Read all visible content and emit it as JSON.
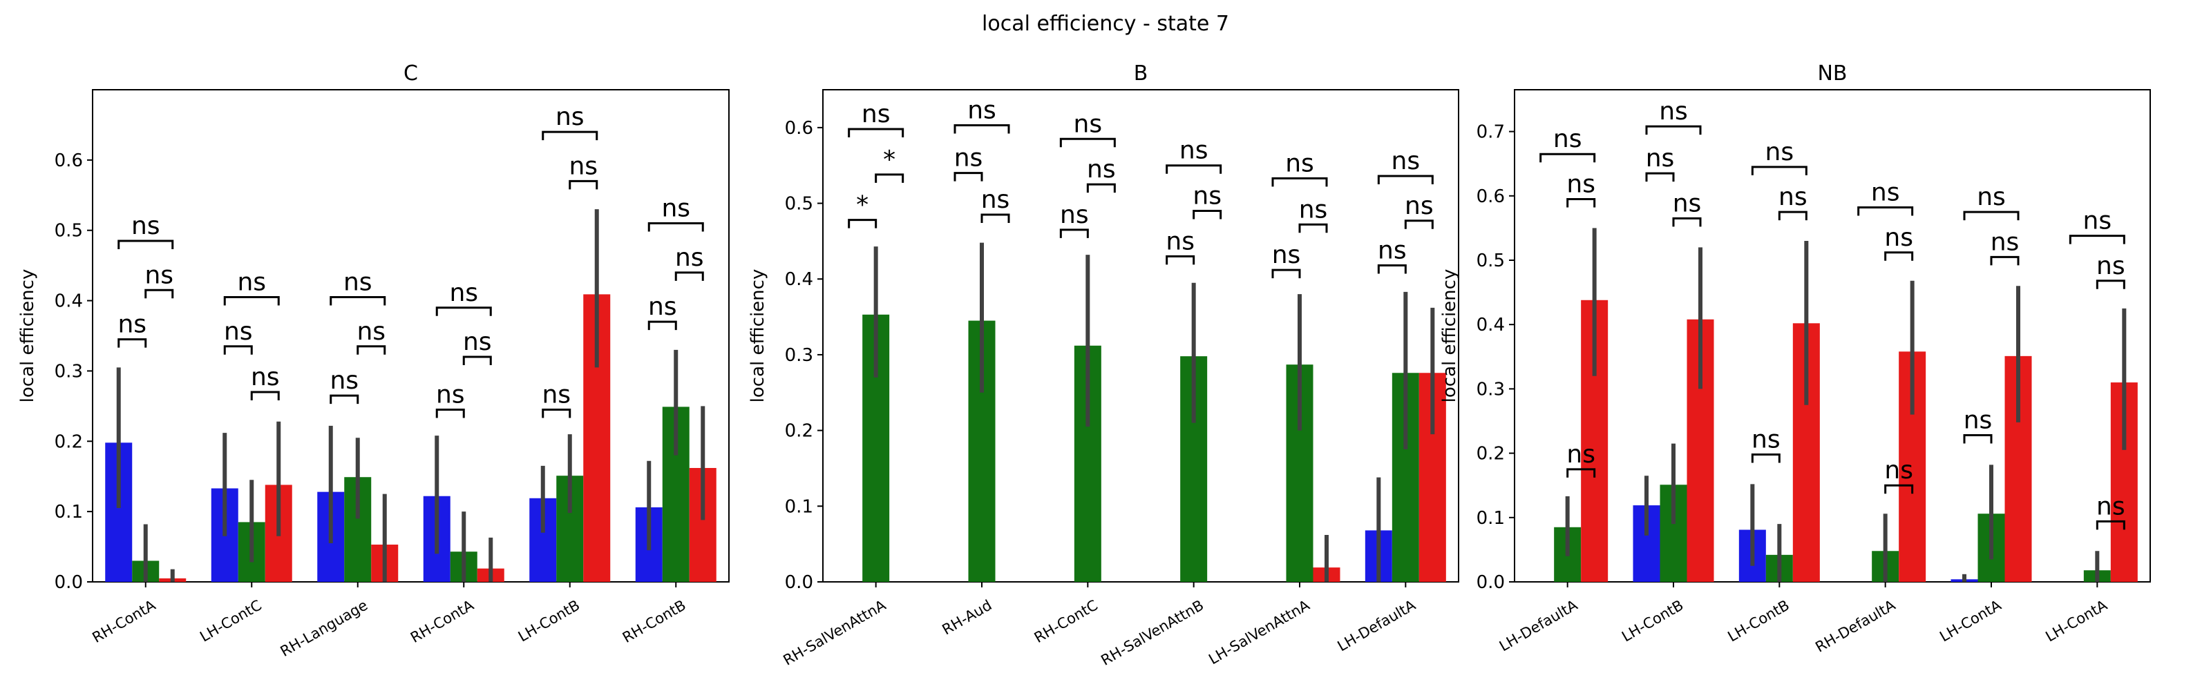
{
  "figure_title": "local efficiency - state 7",
  "colors": {
    "blue": "#1a1ae6",
    "green": "#127312",
    "red": "#e61a1a",
    "err": "#404040"
  },
  "chart_data": [
    {
      "type": "bar",
      "title": "C",
      "ylabel": "local efficiency",
      "ylim": [
        0,
        0.7
      ],
      "yticks": [
        "0.0",
        "0.1",
        "0.2",
        "0.3",
        "0.4",
        "0.5",
        "0.6"
      ],
      "categories": [
        "RH-ContA",
        "LH-ContC",
        "RH-Language",
        "RH-ContA",
        "LH-ContB",
        "RH-ContB"
      ],
      "series": [
        {
          "color": "blue",
          "values": [
            0.198,
            0.133,
            0.128,
            0.122,
            0.119,
            0.106
          ],
          "err_low": [
            0.105,
            0.065,
            0.055,
            0.04,
            0.07,
            0.045
          ],
          "err_high": [
            0.305,
            0.212,
            0.222,
            0.208,
            0.165,
            0.172
          ]
        },
        {
          "color": "green",
          "values": [
            0.03,
            0.085,
            0.149,
            0.043,
            0.151,
            0.249
          ],
          "err_low": [
            0.0,
            0.028,
            0.09,
            0.0,
            0.098,
            0.18
          ],
          "err_high": [
            0.082,
            0.145,
            0.205,
            0.1,
            0.21,
            0.33
          ]
        },
        {
          "color": "red",
          "values": [
            0.005,
            0.138,
            0.053,
            0.019,
            0.409,
            0.162
          ],
          "err_low": [
            0.0,
            0.065,
            0.0,
            0.0,
            0.305,
            0.088
          ],
          "err_high": [
            0.018,
            0.228,
            0.125,
            0.063,
            0.53,
            0.25
          ]
        }
      ],
      "annotations": [
        {
          "cat": 0,
          "pair": "bg",
          "label": "ns",
          "y": 0.345
        },
        {
          "cat": 0,
          "pair": "gr",
          "label": "ns",
          "y": 0.415
        },
        {
          "cat": 0,
          "pair": "br",
          "label": "ns",
          "y": 0.485
        },
        {
          "cat": 1,
          "pair": "bg",
          "label": "ns",
          "y": 0.335
        },
        {
          "cat": 1,
          "pair": "gr",
          "label": "ns",
          "y": 0.27
        },
        {
          "cat": 1,
          "pair": "br",
          "label": "ns",
          "y": 0.405
        },
        {
          "cat": 2,
          "pair": "bg",
          "label": "ns",
          "y": 0.265
        },
        {
          "cat": 2,
          "pair": "gr",
          "label": "ns",
          "y": 0.335
        },
        {
          "cat": 2,
          "pair": "br",
          "label": "ns",
          "y": 0.405
        },
        {
          "cat": 3,
          "pair": "bg",
          "label": "ns",
          "y": 0.245
        },
        {
          "cat": 3,
          "pair": "gr",
          "label": "ns",
          "y": 0.32
        },
        {
          "cat": 3,
          "pair": "br",
          "label": "ns",
          "y": 0.39
        },
        {
          "cat": 4,
          "pair": "bg",
          "label": "ns",
          "y": 0.245
        },
        {
          "cat": 4,
          "pair": "gr",
          "label": "ns",
          "y": 0.57
        },
        {
          "cat": 4,
          "pair": "br",
          "label": "ns",
          "y": 0.64
        },
        {
          "cat": 5,
          "pair": "bg",
          "label": "ns",
          "y": 0.37
        },
        {
          "cat": 5,
          "pair": "gr",
          "label": "ns",
          "y": 0.44
        },
        {
          "cat": 5,
          "pair": "br",
          "label": "ns",
          "y": 0.51
        }
      ]
    },
    {
      "type": "bar",
      "title": "B",
      "ylabel": "local efficiency",
      "ylim": [
        0,
        0.65
      ],
      "yticks": [
        "0.0",
        "0.1",
        "0.2",
        "0.3",
        "0.4",
        "0.5",
        "0.6"
      ],
      "categories": [
        "RH-SalVenAttnA",
        "RH-Aud",
        "RH-ContC",
        "RH-SalVenAttnB",
        "LH-SalVenAttnA",
        "LH-DefaultA"
      ],
      "series": [
        {
          "color": "blue",
          "values": [
            0,
            0,
            0,
            0,
            0,
            0.068
          ],
          "err_low": [
            0,
            0,
            0,
            0,
            0,
            0.0
          ],
          "err_high": [
            0,
            0,
            0,
            0,
            0,
            0.138
          ]
        },
        {
          "color": "green",
          "values": [
            0.353,
            0.345,
            0.312,
            0.298,
            0.287,
            0.276
          ],
          "err_low": [
            0.27,
            0.25,
            0.205,
            0.21,
            0.2,
            0.175
          ],
          "err_high": [
            0.443,
            0.448,
            0.432,
            0.395,
            0.38,
            0.383
          ]
        },
        {
          "color": "red",
          "values": [
            0,
            0,
            0,
            0,
            0.019,
            0.276
          ],
          "err_low": [
            0,
            0,
            0,
            0,
            0.0,
            0.195
          ],
          "err_high": [
            0,
            0,
            0,
            0,
            0.062,
            0.362
          ]
        }
      ],
      "annotations": [
        {
          "cat": 0,
          "pair": "bg",
          "label": "*",
          "y": 0.478
        },
        {
          "cat": 0,
          "pair": "gr",
          "label": "*",
          "y": 0.538
        },
        {
          "cat": 0,
          "pair": "br",
          "label": "ns",
          "y": 0.598
        },
        {
          "cat": 1,
          "pair": "bg",
          "label": "ns",
          "y": 0.54
        },
        {
          "cat": 1,
          "pair": "gr",
          "label": "ns",
          "y": 0.485
        },
        {
          "cat": 1,
          "pair": "br",
          "label": "ns",
          "y": 0.603
        },
        {
          "cat": 2,
          "pair": "bg",
          "label": "ns",
          "y": 0.465
        },
        {
          "cat": 2,
          "pair": "gr",
          "label": "ns",
          "y": 0.525
        },
        {
          "cat": 2,
          "pair": "br",
          "label": "ns",
          "y": 0.585
        },
        {
          "cat": 3,
          "pair": "bg",
          "label": "ns",
          "y": 0.43
        },
        {
          "cat": 3,
          "pair": "gr",
          "label": "ns",
          "y": 0.49
        },
        {
          "cat": 3,
          "pair": "br",
          "label": "ns",
          "y": 0.55
        },
        {
          "cat": 4,
          "pair": "bg",
          "label": "ns",
          "y": 0.412
        },
        {
          "cat": 4,
          "pair": "gr",
          "label": "ns",
          "y": 0.472
        },
        {
          "cat": 4,
          "pair": "br",
          "label": "ns",
          "y": 0.533
        },
        {
          "cat": 5,
          "pair": "bg",
          "label": "ns",
          "y": 0.418
        },
        {
          "cat": 5,
          "pair": "gr",
          "label": "ns",
          "y": 0.477
        },
        {
          "cat": 5,
          "pair": "br",
          "label": "ns",
          "y": 0.536
        }
      ]
    },
    {
      "type": "bar",
      "title": "NB",
      "ylabel": "local efficiency",
      "ylim": [
        0,
        0.765
      ],
      "yticks": [
        "0.0",
        "0.1",
        "0.2",
        "0.3",
        "0.4",
        "0.5",
        "0.6",
        "0.7"
      ],
      "categories": [
        "LH-DefaultA",
        "LH-ContB",
        "LH-ContB",
        "RH-DefaultA",
        "LH-ContA",
        "LH-ContA"
      ],
      "series": [
        {
          "color": "blue",
          "values": [
            0,
            0.119,
            0.081,
            0,
            0.004,
            0
          ],
          "err_low": [
            0,
            0.072,
            0.025,
            0,
            0.0,
            0
          ],
          "err_high": [
            0,
            0.165,
            0.152,
            0,
            0.012,
            0
          ]
        },
        {
          "color": "green",
          "values": [
            0.085,
            0.151,
            0.042,
            0.048,
            0.106,
            0.018
          ],
          "err_low": [
            0.04,
            0.09,
            0.0,
            0.0,
            0.035,
            0.0
          ],
          "err_high": [
            0.133,
            0.215,
            0.09,
            0.106,
            0.182,
            0.048
          ]
        },
        {
          "color": "red",
          "values": [
            0.438,
            0.408,
            0.402,
            0.358,
            0.351,
            0.31
          ],
          "err_low": [
            0.32,
            0.3,
            0.275,
            0.26,
            0.248,
            0.205
          ],
          "err_high": [
            0.55,
            0.52,
            0.53,
            0.468,
            0.46,
            0.425
          ]
        }
      ],
      "annotations": [
        {
          "cat": 0,
          "pair": "gr",
          "label": "ns",
          "y": 0.175
        },
        {
          "cat": 0,
          "pair": "gr",
          "label": "ns",
          "y": 0.595
        },
        {
          "cat": 0,
          "pair": "br",
          "label": "ns",
          "y": 0.665
        },
        {
          "cat": 1,
          "pair": "bg",
          "label": "ns",
          "y": 0.635
        },
        {
          "cat": 1,
          "pair": "gr",
          "label": "ns",
          "y": 0.565
        },
        {
          "cat": 1,
          "pair": "br",
          "label": "ns",
          "y": 0.708
        },
        {
          "cat": 2,
          "pair": "bg",
          "label": "ns",
          "y": 0.198
        },
        {
          "cat": 2,
          "pair": "gr",
          "label": "ns",
          "y": 0.575
        },
        {
          "cat": 2,
          "pair": "br",
          "label": "ns",
          "y": 0.645
        },
        {
          "cat": 3,
          "pair": "gr",
          "label": "ns",
          "y": 0.15
        },
        {
          "cat": 3,
          "pair": "gr",
          "label": "ns",
          "y": 0.512
        },
        {
          "cat": 3,
          "pair": "br",
          "label": "ns",
          "y": 0.582
        },
        {
          "cat": 4,
          "pair": "bg",
          "label": "ns",
          "y": 0.228
        },
        {
          "cat": 4,
          "pair": "gr",
          "label": "ns",
          "y": 0.505
        },
        {
          "cat": 4,
          "pair": "br",
          "label": "ns",
          "y": 0.575
        },
        {
          "cat": 5,
          "pair": "gr",
          "label": "ns",
          "y": 0.094
        },
        {
          "cat": 5,
          "pair": "gr",
          "label": "ns",
          "y": 0.468
        },
        {
          "cat": 5,
          "pair": "br",
          "label": "ns",
          "y": 0.538
        }
      ]
    }
  ]
}
